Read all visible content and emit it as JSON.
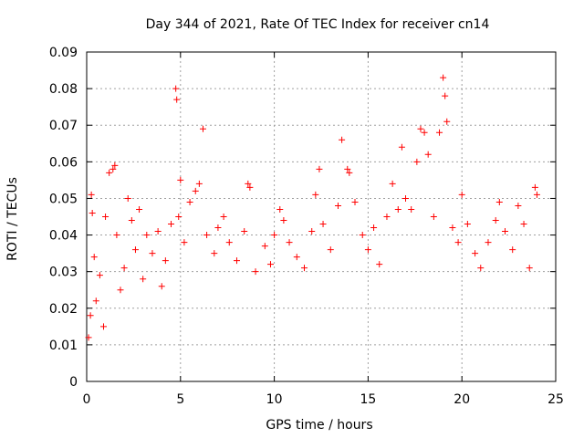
{
  "chart_data": {
    "type": "scatter",
    "title": "Day 344 of 2021, Rate Of TEC Index for receiver cn14",
    "xlabel": "GPS time / hours",
    "ylabel": "ROTI / TECUs",
    "xlim": [
      0,
      25
    ],
    "ylim": [
      0,
      0.09
    ],
    "xticks": [
      0,
      5,
      10,
      15,
      20,
      25
    ],
    "yticks": [
      0,
      0.01,
      0.02,
      0.03,
      0.04,
      0.05,
      0.06,
      0.07,
      0.08,
      0.09
    ],
    "xtick_labels": [
      "0",
      "5",
      "10",
      "15",
      "20",
      "25"
    ],
    "ytick_labels": [
      "0",
      "0.01",
      "0.02",
      "0.03",
      "0.04",
      "0.05",
      "0.06",
      "0.07",
      "0.08",
      "0.09"
    ],
    "grid": true,
    "marker": "+",
    "series": [
      {
        "name": "ROTI",
        "color": "#ff0000",
        "points": [
          [
            0.1,
            0.012
          ],
          [
            0.2,
            0.018
          ],
          [
            0.25,
            0.051
          ],
          [
            0.3,
            0.046
          ],
          [
            0.4,
            0.034
          ],
          [
            0.5,
            0.022
          ],
          [
            0.7,
            0.029
          ],
          [
            0.9,
            0.015
          ],
          [
            1.0,
            0.045
          ],
          [
            1.2,
            0.057
          ],
          [
            1.4,
            0.058
          ],
          [
            1.5,
            0.059
          ],
          [
            1.6,
            0.04
          ],
          [
            1.8,
            0.025
          ],
          [
            2.0,
            0.031
          ],
          [
            2.2,
            0.05
          ],
          [
            2.4,
            0.044
          ],
          [
            2.6,
            0.036
          ],
          [
            2.8,
            0.047
          ],
          [
            3.0,
            0.028
          ],
          [
            3.2,
            0.04
          ],
          [
            3.5,
            0.035
          ],
          [
            3.8,
            0.041
          ],
          [
            4.0,
            0.026
          ],
          [
            4.2,
            0.033
          ],
          [
            4.5,
            0.043
          ],
          [
            4.75,
            0.08
          ],
          [
            4.8,
            0.077
          ],
          [
            4.9,
            0.045
          ],
          [
            5.0,
            0.055
          ],
          [
            5.2,
            0.038
          ],
          [
            5.5,
            0.049
          ],
          [
            5.8,
            0.052
          ],
          [
            6.0,
            0.054
          ],
          [
            6.2,
            0.069
          ],
          [
            6.4,
            0.04
          ],
          [
            6.8,
            0.035
          ],
          [
            7.0,
            0.042
          ],
          [
            7.3,
            0.045
          ],
          [
            7.6,
            0.038
          ],
          [
            8.0,
            0.033
          ],
          [
            8.4,
            0.041
          ],
          [
            8.6,
            0.054
          ],
          [
            8.7,
            0.053
          ],
          [
            9.0,
            0.03
          ],
          [
            9.5,
            0.037
          ],
          [
            9.8,
            0.032
          ],
          [
            10.0,
            0.04
          ],
          [
            10.3,
            0.047
          ],
          [
            10.5,
            0.044
          ],
          [
            10.8,
            0.038
          ],
          [
            11.2,
            0.034
          ],
          [
            11.6,
            0.031
          ],
          [
            12.0,
            0.041
          ],
          [
            12.2,
            0.051
          ],
          [
            12.4,
            0.058
          ],
          [
            12.6,
            0.043
          ],
          [
            13.0,
            0.036
          ],
          [
            13.4,
            0.048
          ],
          [
            13.6,
            0.066
          ],
          [
            13.9,
            0.058
          ],
          [
            14.0,
            0.057
          ],
          [
            14.3,
            0.049
          ],
          [
            14.7,
            0.04
          ],
          [
            15.0,
            0.036
          ],
          [
            15.3,
            0.042
          ],
          [
            15.6,
            0.032
          ],
          [
            16.0,
            0.045
          ],
          [
            16.3,
            0.054
          ],
          [
            16.6,
            0.047
          ],
          [
            16.8,
            0.064
          ],
          [
            17.0,
            0.05
          ],
          [
            17.3,
            0.047
          ],
          [
            17.6,
            0.06
          ],
          [
            17.8,
            0.069
          ],
          [
            18.0,
            0.068
          ],
          [
            18.2,
            0.062
          ],
          [
            18.5,
            0.045
          ],
          [
            18.8,
            0.068
          ],
          [
            19.0,
            0.083
          ],
          [
            19.1,
            0.078
          ],
          [
            19.2,
            0.071
          ],
          [
            19.5,
            0.042
          ],
          [
            19.8,
            0.038
          ],
          [
            20.0,
            0.051
          ],
          [
            20.3,
            0.043
          ],
          [
            20.7,
            0.035
          ],
          [
            21.0,
            0.031
          ],
          [
            21.4,
            0.038
          ],
          [
            21.8,
            0.044
          ],
          [
            22.0,
            0.049
          ],
          [
            22.3,
            0.041
          ],
          [
            22.7,
            0.036
          ],
          [
            23.0,
            0.048
          ],
          [
            23.3,
            0.043
          ],
          [
            23.6,
            0.031
          ],
          [
            23.9,
            0.053
          ],
          [
            24.0,
            0.051
          ]
        ]
      }
    ]
  }
}
